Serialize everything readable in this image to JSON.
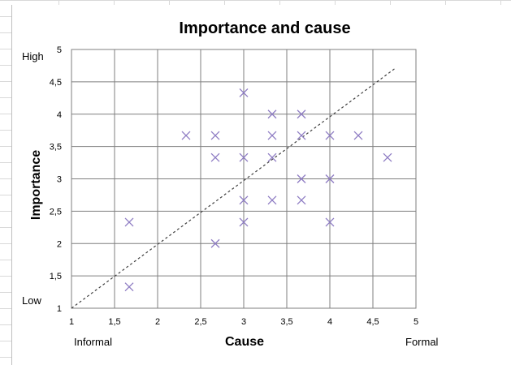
{
  "colors": {
    "marker": "#8e7cc3",
    "grid": "#7f7f7f",
    "trendline": "#404040"
  },
  "chart_data": {
    "type": "scatter",
    "title": "Importance and cause",
    "xlabel": "Cause",
    "ylabel": "Importance",
    "xlim": [
      1,
      5
    ],
    "ylim": [
      1,
      5
    ],
    "x_ticks": [
      "1",
      "1,5",
      "2",
      "2,5",
      "3",
      "3,5",
      "4",
      "4,5",
      "5"
    ],
    "y_ticks": [
      "1",
      "1,5",
      "2",
      "2,5",
      "3",
      "3,5",
      "4",
      "4,5",
      "5"
    ],
    "x_end_labels": {
      "min": "Informal",
      "max": "Formal"
    },
    "y_end_labels": {
      "min": "Low",
      "max": "High"
    },
    "grid": true,
    "marker": "x",
    "points": [
      {
        "x": 1.67,
        "y": 1.33
      },
      {
        "x": 1.67,
        "y": 2.33
      },
      {
        "x": 2.33,
        "y": 3.67
      },
      {
        "x": 2.67,
        "y": 3.67
      },
      {
        "x": 2.67,
        "y": 3.33
      },
      {
        "x": 2.67,
        "y": 2.0
      },
      {
        "x": 3.0,
        "y": 4.33
      },
      {
        "x": 3.0,
        "y": 3.33
      },
      {
        "x": 3.0,
        "y": 2.67
      },
      {
        "x": 3.0,
        "y": 2.33
      },
      {
        "x": 3.33,
        "y": 4.0
      },
      {
        "x": 3.33,
        "y": 3.67
      },
      {
        "x": 3.33,
        "y": 3.33
      },
      {
        "x": 3.33,
        "y": 2.67
      },
      {
        "x": 3.67,
        "y": 4.0
      },
      {
        "x": 3.67,
        "y": 3.67
      },
      {
        "x": 3.67,
        "y": 3.0
      },
      {
        "x": 3.67,
        "y": 2.67
      },
      {
        "x": 4.0,
        "y": 3.67
      },
      {
        "x": 4.0,
        "y": 3.0
      },
      {
        "x": 4.0,
        "y": 2.33
      },
      {
        "x": 4.33,
        "y": 3.67
      },
      {
        "x": 4.67,
        "y": 3.33
      }
    ],
    "trendline": {
      "style": "dashed",
      "from": {
        "x": 1.0,
        "y": 1.0
      },
      "to": {
        "x": 4.75,
        "y": 4.7
      }
    }
  }
}
